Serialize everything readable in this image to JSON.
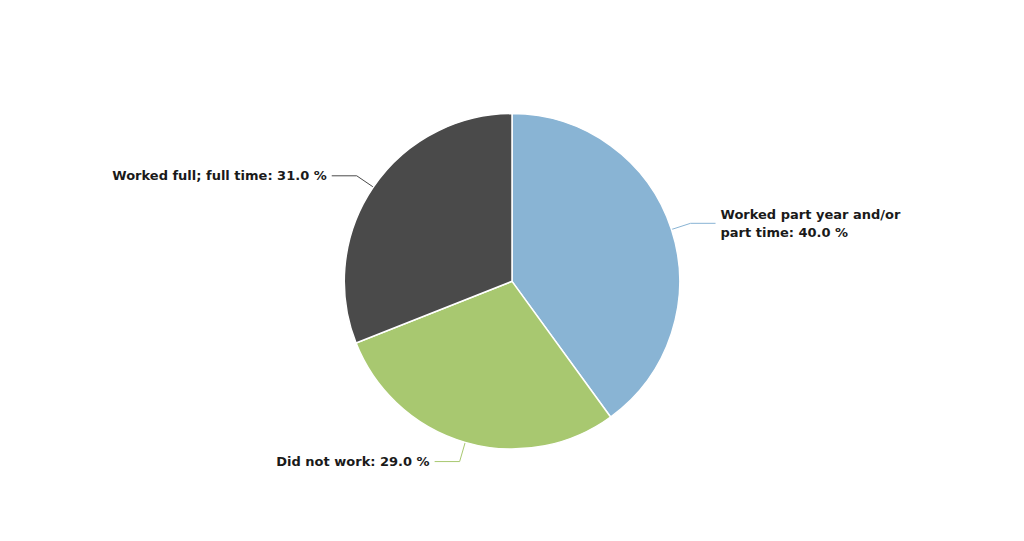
{
  "chart_data": {
    "type": "pie",
    "values": [
      40.0,
      29.0,
      31.0
    ],
    "value_labels": [
      "Worked part year and/or\npart time: 40.0 %",
      "Did not work: 29.0 %",
      "Worked full; full time: 31.0 %"
    ],
    "colors": [
      "#89b4d4",
      "#a8c870",
      "#4a4a4a"
    ],
    "data_labels": true
  }
}
